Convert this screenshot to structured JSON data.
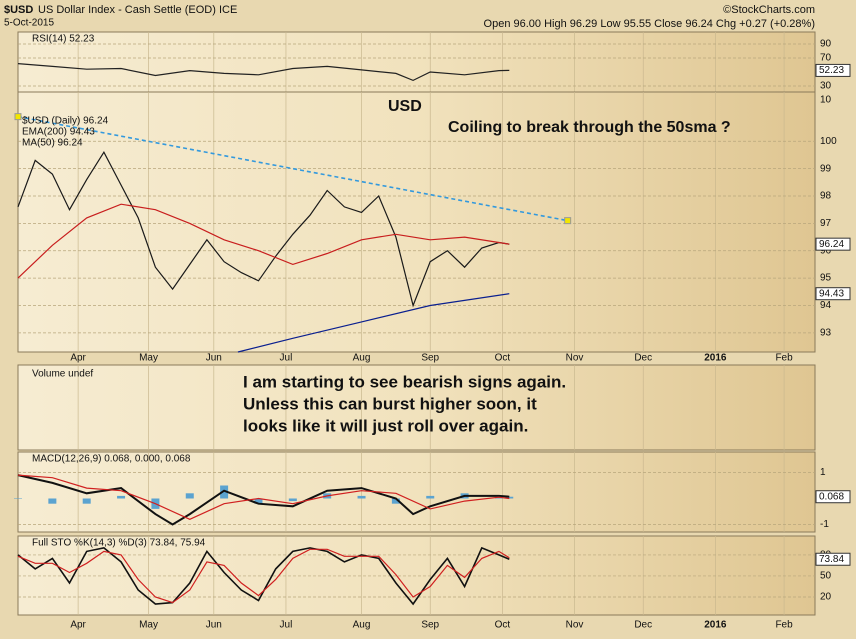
{
  "header": {
    "symbol": "$USD",
    "description": "US Dollar Index - Cash Settle (EOD) ICE",
    "date": "5-Oct-2015",
    "quote": "Open 96.00 High 96.29 Low 95.55 Close 96.24 Chg +0.27 (+0.28%)",
    "credit": "©StockCharts.com"
  },
  "chart_data": [
    {
      "type": "line",
      "title": "RSI(14) 52.23",
      "ylim": [
        21.4,
        107.1
      ],
      "yticks": [
        90,
        70,
        30,
        10
      ],
      "series": [
        {
          "color": "#222222",
          "label_box": true,
          "x": [
            0,
            10,
            20,
            30,
            40,
            50,
            60,
            70,
            80,
            90,
            100,
            110,
            115,
            120,
            130,
            140,
            143
          ],
          "values": [
            62,
            58,
            54,
            55,
            45,
            52,
            48,
            46,
            55,
            58,
            53,
            48,
            38,
            50,
            46,
            52,
            52.23
          ]
        }
      ]
    },
    {
      "type": "line",
      "xlim": [
        0,
        232
      ],
      "xticks": [
        {
          "value": 17.5,
          "label": "Apr"
        },
        {
          "value": 38,
          "label": "May"
        },
        {
          "value": 57,
          "label": "Jun"
        },
        {
          "value": 78,
          "label": "Jul"
        },
        {
          "value": 100,
          "label": "Aug"
        },
        {
          "value": 120,
          "label": "Sep"
        },
        {
          "value": 141,
          "label": "Oct"
        },
        {
          "value": 162,
          "label": "Nov"
        },
        {
          "value": 182,
          "label": "Dec"
        },
        {
          "value": 203,
          "label": "2016"
        },
        {
          "value": 223,
          "label": "Feb"
        }
      ],
      "ylim": [
        92.3,
        101.8
      ],
      "yticks": [
        100,
        99,
        98,
        97,
        96,
        95,
        94,
        93
      ],
      "series": [
        {
          "name": "$USD (Daily) 96.24",
          "color": "#1a1a1a",
          "label_box": true,
          "x": [
            0,
            5,
            10,
            15,
            20,
            25,
            30,
            35,
            40,
            45,
            50,
            55,
            60,
            65,
            70,
            75,
            80,
            85,
            90,
            95,
            100,
            105,
            110,
            115,
            120,
            125,
            130,
            135,
            140,
            143
          ],
          "values": [
            97.6,
            99.3,
            98.8,
            97.5,
            98.6,
            99.6,
            98.4,
            97.2,
            95.4,
            94.6,
            95.5,
            96.4,
            95.6,
            95.2,
            94.9,
            95.8,
            96.6,
            97.3,
            98.2,
            97.6,
            97.4,
            98.0,
            96.5,
            94.0,
            95.6,
            96.0,
            95.4,
            96.1,
            96.3,
            96.24
          ]
        },
        {
          "name": "EMA(200) 94.43",
          "color": "#0a1f8f",
          "label_box": true,
          "x": [
            64,
            80,
            100,
            120,
            143
          ],
          "values": [
            92.3,
            92.8,
            93.4,
            94.0,
            94.43
          ]
        },
        {
          "name": "MA(50) 96.24",
          "color": "#c81e1e",
          "x": [
            0,
            10,
            20,
            30,
            40,
            50,
            60,
            70,
            80,
            90,
            100,
            110,
            120,
            130,
            140,
            143
          ],
          "values": [
            95.0,
            96.2,
            97.2,
            97.7,
            97.5,
            97.0,
            96.4,
            96.0,
            95.5,
            95.9,
            96.4,
            96.6,
            96.4,
            96.5,
            96.3,
            96.24
          ]
        }
      ],
      "trendline": {
        "color": "#3399dd",
        "x": [
          0,
          160
        ],
        "values": [
          100.9,
          97.1
        ]
      },
      "annotations": [
        "USD",
        "Coiling to break through the 50sma ?"
      ]
    },
    {
      "type": "volume",
      "title": "Volume undef",
      "notes": [
        "I am starting to see bearish signs again.",
        "Unless this can burst higher soon, it",
        "looks like it  will just roll over again."
      ]
    },
    {
      "type": "line",
      "title": "MACD(12,26,9) 0.068, 0.000, 0.068",
      "ylim": [
        -1.29,
        1.79
      ],
      "yticks": [
        1,
        -1
      ],
      "series": [
        {
          "kind": "bar",
          "color": "#5ba3d0",
          "x": [
            0,
            10,
            20,
            30,
            40,
            50,
            60,
            70,
            80,
            90,
            100,
            110,
            120,
            130,
            140,
            143
          ],
          "values": [
            0,
            -0.2,
            -0.2,
            0.1,
            -0.4,
            0.2,
            0.5,
            -0.2,
            -0.1,
            0.2,
            0.1,
            -0.2,
            0.1,
            0.2,
            0.05,
            0.068
          ]
        },
        {
          "color": "#111111",
          "width": 2,
          "label_box": true,
          "x": [
            0,
            10,
            20,
            30,
            40,
            45,
            50,
            60,
            70,
            80,
            90,
            100,
            110,
            115,
            120,
            130,
            140,
            143
          ],
          "values": [
            0.9,
            0.6,
            0.2,
            0.4,
            -0.6,
            -1.0,
            -0.6,
            0.3,
            -0.2,
            -0.3,
            0.3,
            0.4,
            0,
            -0.6,
            -0.3,
            0.1,
            0.1,
            0.068
          ]
        },
        {
          "color": "#d02020",
          "x": [
            0,
            10,
            20,
            30,
            40,
            50,
            60,
            70,
            80,
            90,
            100,
            110,
            120,
            130,
            140,
            143
          ],
          "values": [
            0.9,
            0.8,
            0.4,
            0.3,
            -0.2,
            -0.8,
            -0.2,
            0,
            -0.2,
            0.1,
            0.3,
            0.2,
            -0.4,
            -0.1,
            0.05,
            0.0
          ]
        }
      ]
    },
    {
      "type": "line",
      "title": "Full STO %K(14,3) %D(3) 73.84, 75.94",
      "ylim": [
        -5.7,
        107
      ],
      "yticks": [
        80,
        50,
        20
      ],
      "series": [
        {
          "color": "#111111",
          "width": 1.6,
          "label_box": true,
          "x": [
            0,
            5,
            10,
            15,
            20,
            25,
            30,
            35,
            40,
            45,
            50,
            55,
            60,
            65,
            70,
            75,
            80,
            85,
            90,
            95,
            100,
            105,
            110,
            115,
            120,
            125,
            130,
            135,
            140,
            143
          ],
          "values": [
            80,
            60,
            75,
            40,
            85,
            90,
            70,
            30,
            10,
            12,
            40,
            85,
            55,
            30,
            15,
            60,
            85,
            90,
            85,
            70,
            80,
            75,
            40,
            10,
            45,
            75,
            35,
            90,
            80,
            73.84
          ]
        },
        {
          "color": "#d02020",
          "x": [
            0,
            5,
            10,
            15,
            20,
            25,
            30,
            35,
            40,
            45,
            50,
            55,
            60,
            65,
            70,
            75,
            80,
            85,
            90,
            95,
            100,
            105,
            110,
            115,
            120,
            125,
            130,
            135,
            140,
            143
          ],
          "values": [
            78,
            68,
            68,
            55,
            68,
            85,
            80,
            45,
            20,
            12,
            30,
            70,
            65,
            40,
            22,
            45,
            75,
            88,
            88,
            78,
            78,
            78,
            52,
            20,
            35,
            65,
            48,
            75,
            85,
            75.94
          ]
        }
      ]
    }
  ]
}
